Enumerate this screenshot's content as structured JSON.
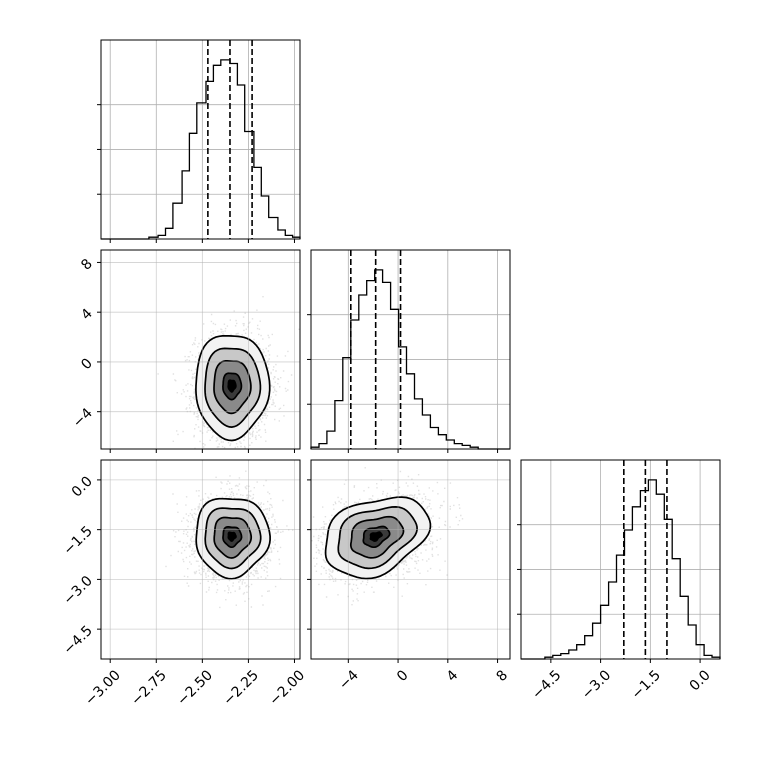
{
  "chart_data": {
    "type": "corner",
    "grid": true,
    "parameters": [
      {
        "range": [
          -3.05,
          -1.97
        ],
        "ticks": [
          -3.0,
          -2.75,
          -2.5,
          -2.25,
          -2.0
        ],
        "tick_labels": [
          "−3.00",
          "−2.75",
          "−2.50",
          "−2.25",
          "−2.00"
        ],
        "quantiles": [
          -2.47,
          -2.35,
          -2.23
        ],
        "histogram": {
          "edges": [
            -3.05,
            -3.01,
            -2.96,
            -2.92,
            -2.87,
            -2.83,
            -2.79,
            -2.74,
            -2.7,
            -2.66,
            -2.61,
            -2.57,
            -2.53,
            -2.48,
            -2.44,
            -2.4,
            -2.35,
            -2.31,
            -2.27,
            -2.22,
            -2.18,
            -2.14,
            -2.09,
            -2.05,
            -2.01,
            -1.97
          ],
          "counts": [
            0,
            0,
            0,
            0,
            0,
            0,
            0.01,
            0.02,
            0.06,
            0.2,
            0.38,
            0.59,
            0.76,
            0.88,
            0.97,
            1.0,
            0.98,
            0.86,
            0.6,
            0.4,
            0.24,
            0.12,
            0.05,
            0.02,
            0.01
          ]
        }
      },
      {
        "range": [
          -7.0,
          9.0
        ],
        "ticks": [
          -4,
          0,
          4,
          8
        ],
        "tick_labels": [
          "−4",
          "0",
          "4",
          "8"
        ],
        "quantiles": [
          -3.8,
          -1.8,
          0.2
        ],
        "histogram": {
          "edges": [
            -7.0,
            -6.36,
            -5.72,
            -5.08,
            -4.44,
            -3.8,
            -3.16,
            -2.52,
            -1.88,
            -1.24,
            -0.6,
            0.04,
            0.68,
            1.32,
            1.96,
            2.6,
            3.24,
            3.88,
            4.52,
            5.16,
            5.8,
            6.44,
            7.08,
            7.72,
            8.36,
            9.0
          ],
          "counts": [
            0.01,
            0.03,
            0.1,
            0.27,
            0.51,
            0.72,
            0.86,
            0.94,
            1.0,
            0.93,
            0.78,
            0.57,
            0.42,
            0.28,
            0.19,
            0.12,
            0.08,
            0.05,
            0.03,
            0.02,
            0.01,
            0,
            0,
            0,
            0
          ]
        }
      },
      {
        "range": [
          -5.4,
          0.6
        ],
        "ticks": [
          -4.5,
          -3.0,
          -1.5,
          0.0
        ],
        "tick_labels": [
          "−4.5",
          "−3.0",
          "−1.5",
          "0.0"
        ],
        "quantiles": [
          -2.3,
          -1.65,
          -1.0
        ],
        "histogram": {
          "edges": [
            -5.4,
            -5.16,
            -4.92,
            -4.68,
            -4.44,
            -4.2,
            -3.96,
            -3.72,
            -3.48,
            -3.24,
            -3.0,
            -2.76,
            -2.52,
            -2.28,
            -2.04,
            -1.8,
            -1.56,
            -1.32,
            -1.08,
            -0.84,
            -0.6,
            -0.36,
            -0.12,
            0.12,
            0.36,
            0.6
          ],
          "counts": [
            0,
            0,
            0,
            0.01,
            0.02,
            0.03,
            0.05,
            0.08,
            0.13,
            0.2,
            0.3,
            0.43,
            0.58,
            0.72,
            0.85,
            0.94,
            1.0,
            0.92,
            0.78,
            0.56,
            0.35,
            0.19,
            0.08,
            0.02,
            0.01
          ]
        }
      }
    ],
    "pairs": [
      {
        "x": 0,
        "y": 1,
        "center": [
          -2.34,
          -1.9
        ],
        "sigma": [
          0.1,
          2.1
        ],
        "rho": 0.0
      },
      {
        "x": 0,
        "y": 2,
        "center": [
          -2.34,
          -1.7
        ],
        "sigma": [
          0.1,
          0.6
        ],
        "rho": 0.0
      },
      {
        "x": 1,
        "y": 2,
        "center": [
          -1.8,
          -1.7
        ],
        "sigma": [
          2.1,
          0.6
        ],
        "rho": 0.3
      }
    ]
  }
}
